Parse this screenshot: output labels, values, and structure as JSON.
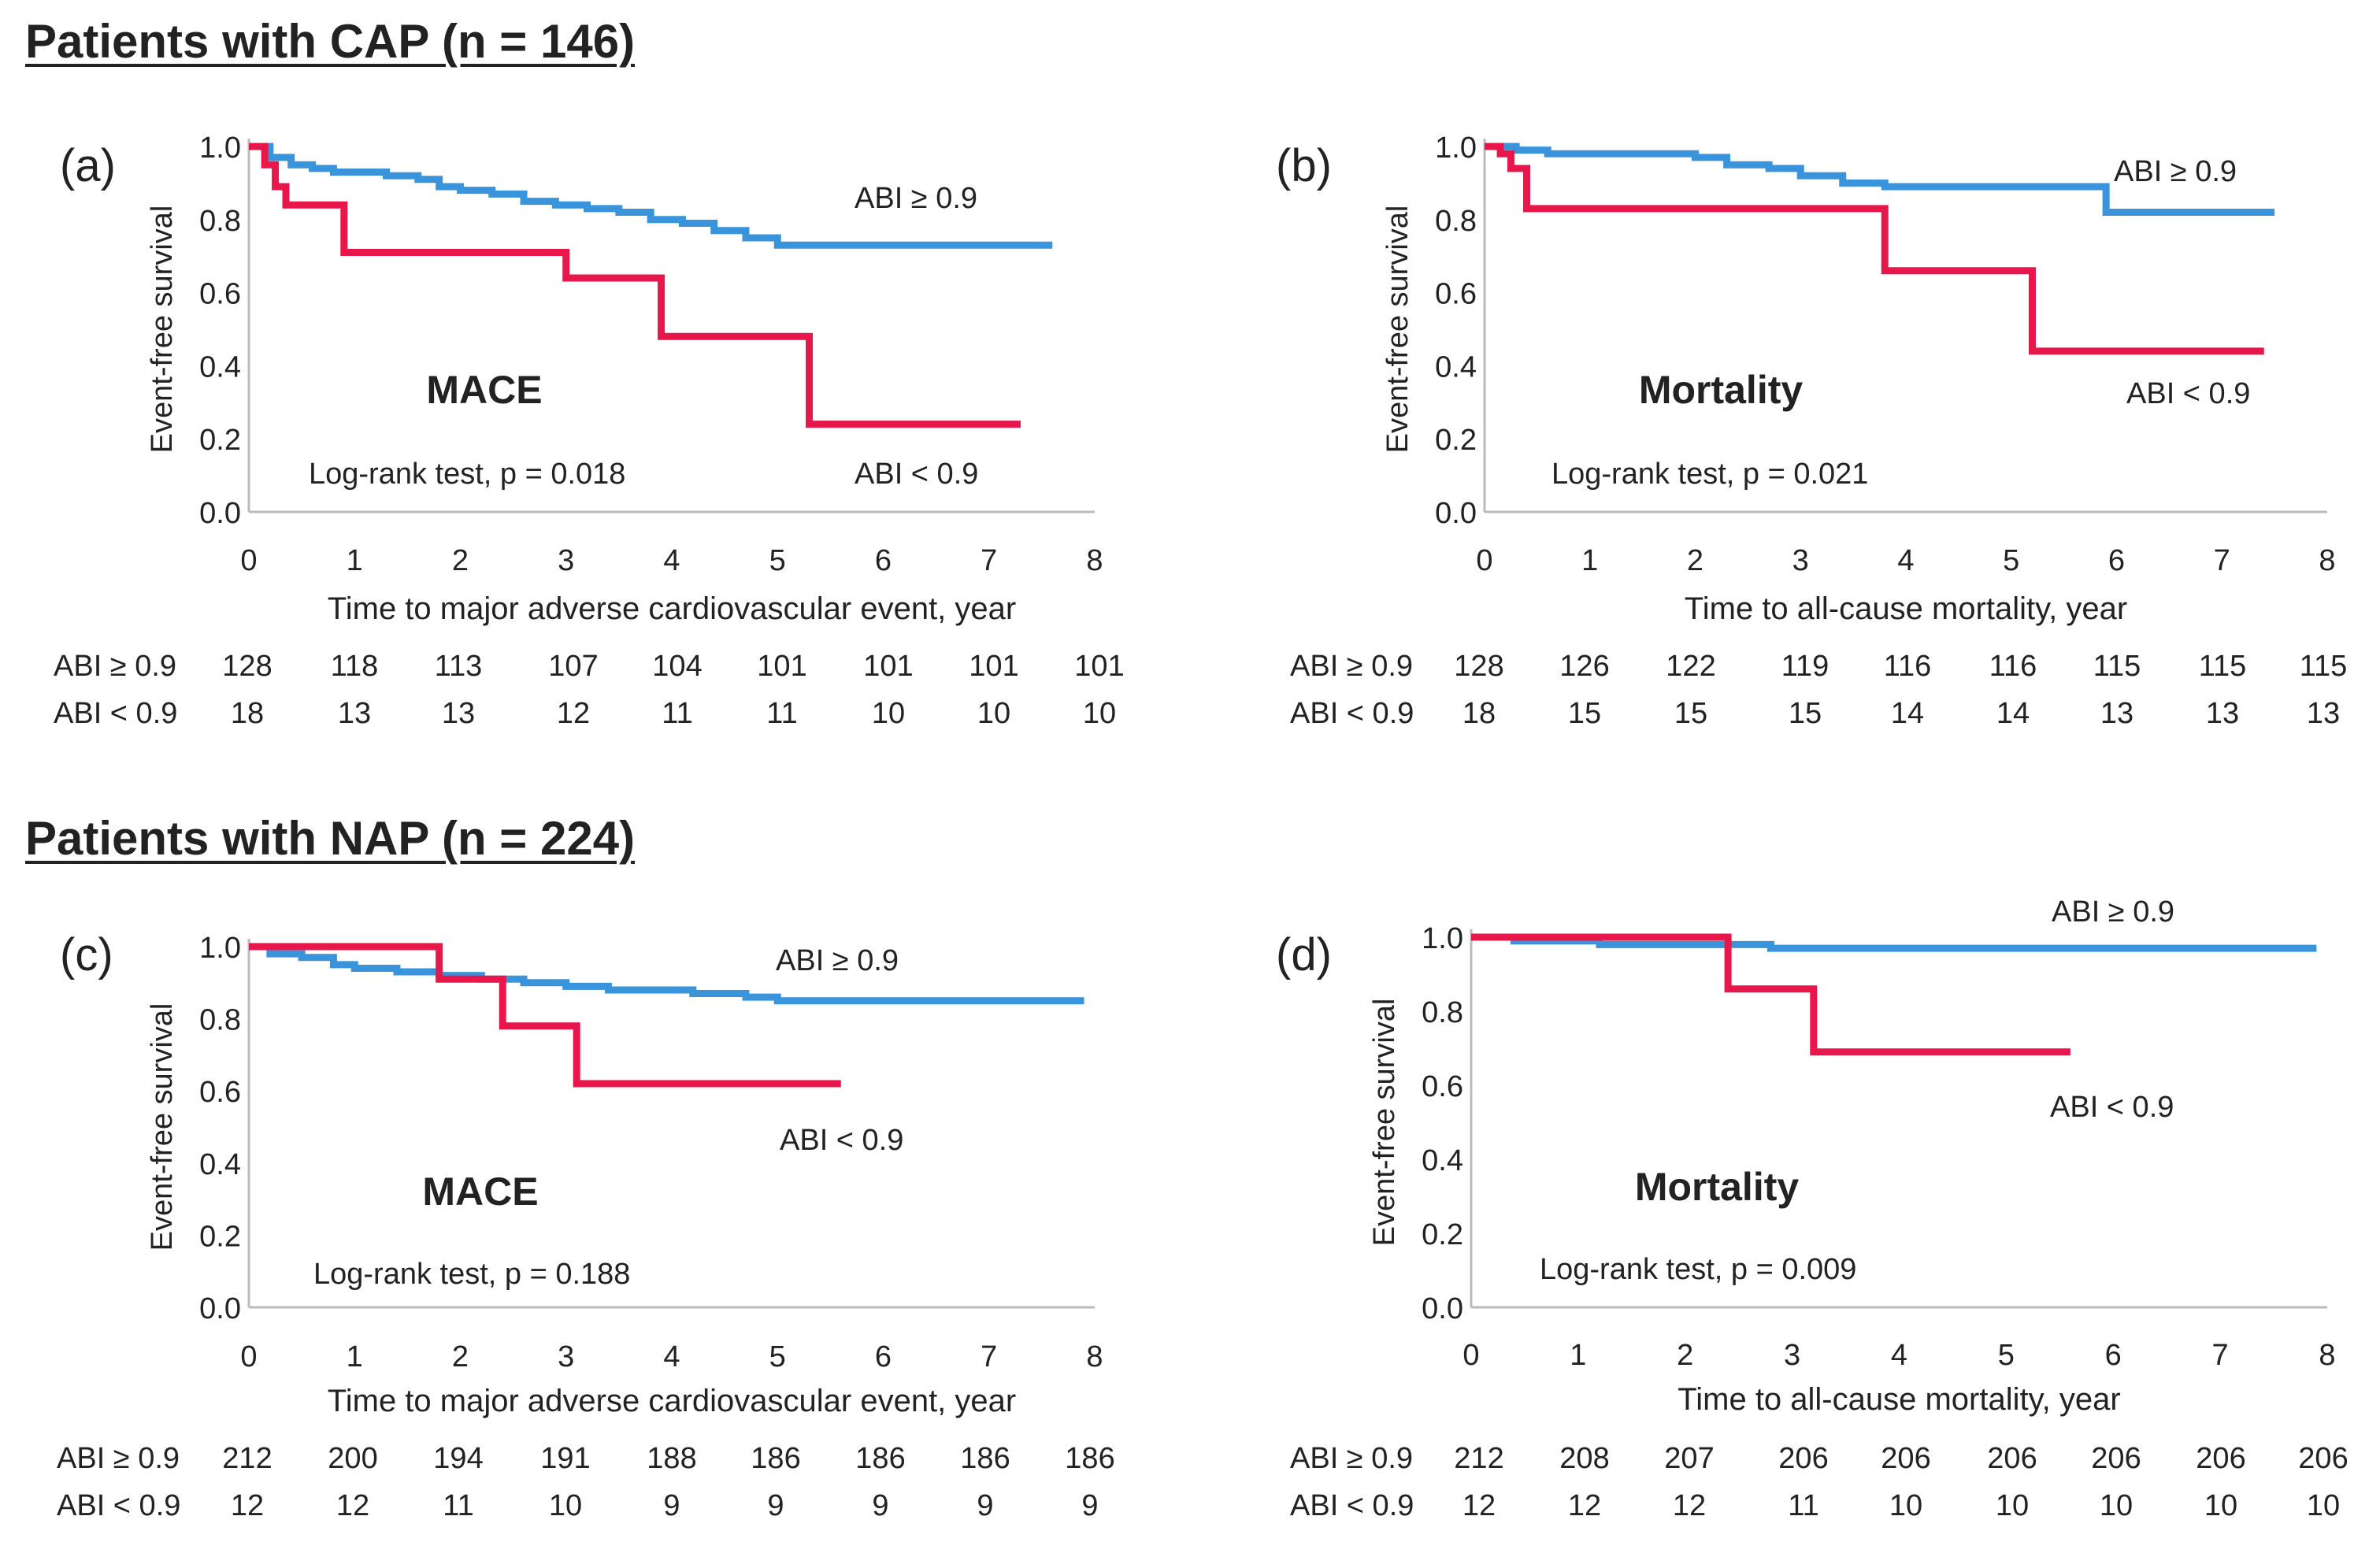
{
  "sections": [
    {
      "title": "Patients with CAP (n = 146)"
    },
    {
      "title": "Patients with NAP (n = 224)"
    }
  ],
  "colors": {
    "abi_high": "#3a94dc",
    "abi_low": "#e8174b",
    "axis": "#bbbbbb",
    "text": "#222222"
  },
  "chart_data": [
    {
      "type": "line",
      "panel_label": "(a)",
      "title": "MACE",
      "stat_text": "Log-rank test,  p = 0.018",
      "xlabel": "Time to major adverse cardiovascular event,  year",
      "ylabel": "Event-free survival",
      "xlim": [
        0,
        8
      ],
      "ylim": [
        0,
        1.0
      ],
      "xticks": [
        0,
        1,
        2,
        3,
        4,
        5,
        6,
        7,
        8
      ],
      "yticks": [
        "0.0",
        "0.2",
        "0.4",
        "0.6",
        "0.8",
        "1.0"
      ],
      "series": [
        {
          "name": "ABI ≥ 0.9",
          "x": [
            0,
            0.2,
            0.4,
            0.6,
            0.8,
            1.0,
            1.3,
            1.6,
            1.8,
            2.0,
            2.3,
            2.6,
            2.9,
            3.2,
            3.5,
            3.8,
            4.1,
            4.4,
            4.7,
            5.0,
            5.5,
            6.0,
            6.5,
            7.0,
            7.6
          ],
          "y": [
            1.0,
            0.97,
            0.95,
            0.94,
            0.93,
            0.93,
            0.92,
            0.91,
            0.89,
            0.88,
            0.87,
            0.85,
            0.84,
            0.83,
            0.82,
            0.8,
            0.79,
            0.77,
            0.75,
            0.73,
            0.73,
            0.73,
            0.73,
            0.73,
            0.73
          ]
        },
        {
          "name": "ABI < 0.9",
          "x": [
            0,
            0.15,
            0.25,
            0.35,
            0.8,
            0.9,
            2.8,
            3.0,
            3.8,
            3.9,
            5.2,
            5.3,
            7.3
          ],
          "y": [
            1.0,
            0.95,
            0.89,
            0.84,
            0.84,
            0.71,
            0.71,
            0.64,
            0.64,
            0.48,
            0.48,
            0.24,
            0.24
          ]
        }
      ],
      "series_labels": [
        "ABI ≥ 0.9",
        "ABI < 0.9"
      ],
      "risk_table": {
        "rows": [
          {
            "label": "ABI ≥ 0.9",
            "values": [
              "128",
              "118",
              "113",
              "107",
              "104",
              "101",
              "101",
              "101",
              "101"
            ]
          },
          {
            "label": "ABI < 0.9",
            "values": [
              "18",
              "13",
              "13",
              "12",
              "11",
              "11",
              "10",
              "10",
              "10"
            ]
          }
        ]
      }
    },
    {
      "type": "line",
      "panel_label": "(b)",
      "title": "Mortality",
      "stat_text": "Log-rank test,  p = 0.021",
      "xlabel": "Time to all-cause mortality,  year",
      "ylabel": "Event-free survival",
      "xlim": [
        0,
        8
      ],
      "ylim": [
        0,
        1.0
      ],
      "xticks": [
        0,
        1,
        2,
        3,
        4,
        5,
        6,
        7,
        8
      ],
      "yticks": [
        "0.0",
        "0.2",
        "0.4",
        "0.6",
        "0.8",
        "1.0"
      ],
      "series": [
        {
          "name": "ABI ≥ 0.9",
          "x": [
            0,
            0.3,
            0.6,
            1.0,
            1.5,
            2.0,
            2.3,
            2.7,
            3.0,
            3.4,
            3.8,
            4.2,
            4.8,
            5.3,
            5.8,
            5.9,
            6.5,
            7.0,
            7.5
          ],
          "y": [
            1.0,
            0.99,
            0.98,
            0.98,
            0.98,
            0.97,
            0.95,
            0.94,
            0.92,
            0.9,
            0.89,
            0.89,
            0.89,
            0.89,
            0.89,
            0.82,
            0.82,
            0.82,
            0.82
          ]
        },
        {
          "name": "ABI < 0.9",
          "x": [
            0,
            0.15,
            0.25,
            0.35,
            0.4,
            3.8,
            3.8,
            5.2,
            5.2,
            7.4
          ],
          "y": [
            1.0,
            0.98,
            0.94,
            0.94,
            0.83,
            0.83,
            0.66,
            0.66,
            0.44,
            0.44
          ]
        }
      ],
      "series_labels": [
        "ABI ≥ 0.9",
        "ABI < 0.9"
      ],
      "risk_table": {
        "rows": [
          {
            "label": "ABI ≥ 0.9",
            "values": [
              "128",
              "126",
              "122",
              "119",
              "116",
              "116",
              "115",
              "115",
              "115"
            ]
          },
          {
            "label": "ABI < 0.9",
            "values": [
              "18",
              "15",
              "15",
              "15",
              "14",
              "14",
              "13",
              "13",
              "13"
            ]
          }
        ]
      }
    },
    {
      "type": "line",
      "panel_label": "(c)",
      "title": "MACE",
      "stat_text": "Log-rank test,  p = 0.188",
      "xlabel": "Time to major adverse cardiovascular event,  year",
      "ylabel": "Event-free survival",
      "xlim": [
        0,
        8
      ],
      "ylim": [
        0,
        1.0
      ],
      "xticks": [
        0,
        1,
        2,
        3,
        4,
        5,
        6,
        7,
        8
      ],
      "yticks": [
        "0.0",
        "0.2",
        "0.4",
        "0.6",
        "0.8",
        "1.0"
      ],
      "series": [
        {
          "name": "ABI ≥ 0.9",
          "x": [
            0,
            0.2,
            0.5,
            0.8,
            1.0,
            1.4,
            1.8,
            2.2,
            2.6,
            3.0,
            3.4,
            3.8,
            4.2,
            4.7,
            5.0,
            5.5,
            6.0,
            6.5,
            7.0,
            7.9
          ],
          "y": [
            1.0,
            0.98,
            0.97,
            0.95,
            0.94,
            0.93,
            0.92,
            0.91,
            0.9,
            0.89,
            0.88,
            0.88,
            0.87,
            0.86,
            0.85,
            0.85,
            0.85,
            0.85,
            0.85,
            0.85
          ]
        },
        {
          "name": "ABI < 0.9",
          "x": [
            0,
            1.8,
            1.8,
            2.4,
            2.4,
            3.1,
            3.1,
            5.6
          ],
          "y": [
            1.0,
            1.0,
            0.91,
            0.91,
            0.78,
            0.78,
            0.62,
            0.62
          ]
        }
      ],
      "series_labels": [
        "ABI ≥ 0.9",
        "ABI < 0.9"
      ],
      "risk_table": {
        "rows": [
          {
            "label": "ABI ≥ 0.9",
            "values": [
              "212",
              "200",
              "194",
              "191",
              "188",
              "186",
              "186",
              "186",
              "186"
            ]
          },
          {
            "label": "ABI < 0.9",
            "values": [
              "12",
              "12",
              "11",
              "10",
              "9",
              "9",
              "9",
              "9",
              "9"
            ]
          }
        ]
      }
    },
    {
      "type": "line",
      "panel_label": "(d)",
      "title": "Mortality",
      "stat_text": "Log-rank test,  p = 0.009",
      "xlabel": "Time to all-cause mortality,  year",
      "ylabel": "Event-free survival",
      "xlim": [
        0,
        8
      ],
      "ylim": [
        0,
        1.0
      ],
      "xticks": [
        0,
        1,
        2,
        3,
        4,
        5,
        6,
        7,
        8
      ],
      "yticks": [
        "0.0",
        "0.2",
        "0.4",
        "0.6",
        "0.8",
        "1.0"
      ],
      "series": [
        {
          "name": "ABI ≥ 0.9",
          "x": [
            0,
            0.4,
            0.8,
            1.2,
            1.6,
            2.0,
            2.4,
            2.8,
            3.5,
            4.5,
            5.5,
            6.5,
            7.9
          ],
          "y": [
            1.0,
            0.99,
            0.99,
            0.98,
            0.98,
            0.98,
            0.98,
            0.97,
            0.97,
            0.97,
            0.97,
            0.97,
            0.97
          ]
        },
        {
          "name": "ABI < 0.9",
          "x": [
            0,
            2.4,
            2.4,
            3.2,
            3.2,
            5.6
          ],
          "y": [
            1.0,
            1.0,
            0.86,
            0.86,
            0.69,
            0.69
          ]
        }
      ],
      "series_labels": [
        "ABI ≥ 0.9",
        "ABI < 0.9"
      ],
      "risk_table": {
        "rows": [
          {
            "label": "ABI ≥ 0.9",
            "values": [
              "212",
              "208",
              "207",
              "206",
              "206",
              "206",
              "206",
              "206",
              "206"
            ]
          },
          {
            "label": "ABI < 0.9",
            "values": [
              "12",
              "12",
              "12",
              "11",
              "10",
              "10",
              "10",
              "10",
              "10"
            ]
          }
        ]
      }
    }
  ]
}
